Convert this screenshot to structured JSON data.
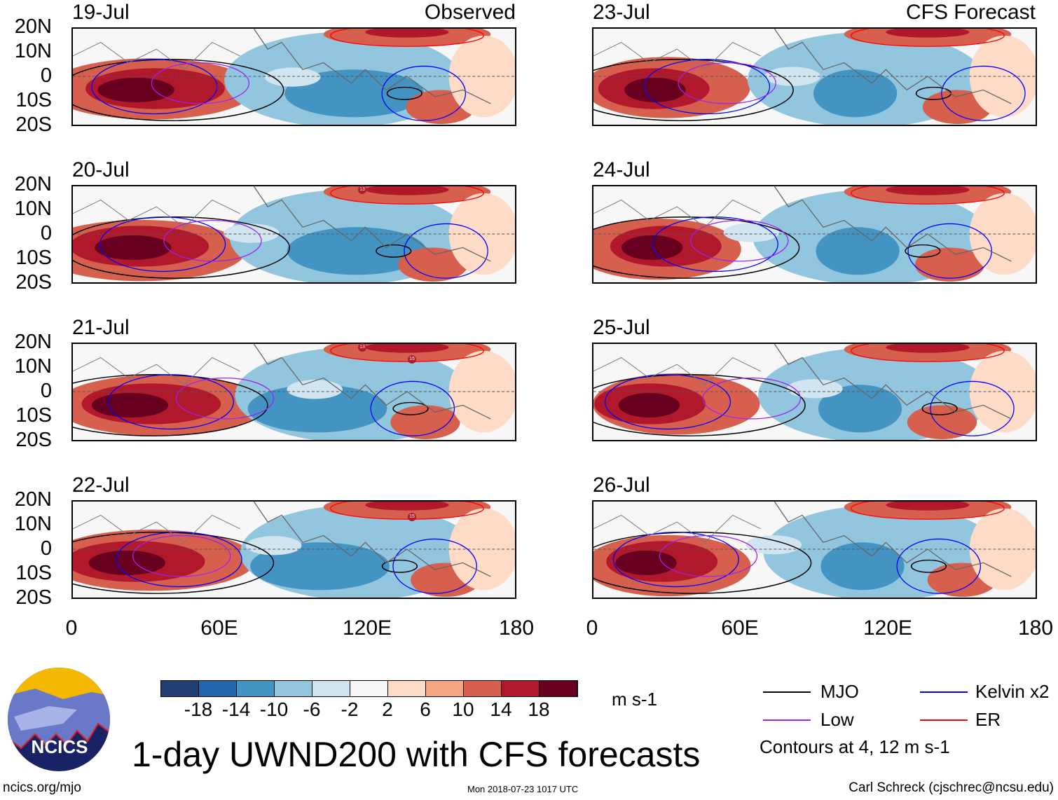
{
  "title": "1-day UWND200 with CFS forecasts",
  "left_panel_title": "Observed",
  "right_panel_title": "CFS Forecast",
  "left_dates": [
    "19-Jul",
    "20-Jul",
    "21-Jul",
    "22-Jul"
  ],
  "right_dates": [
    "23-Jul",
    "24-Jul",
    "25-Jul",
    "26-Jul"
  ],
  "lat_labels": [
    "20N",
    "10N",
    "0",
    "10S",
    "20S"
  ],
  "lon_labels": [
    "0",
    "60E",
    "120E",
    "180"
  ],
  "storm_markers": [
    "13",
    "15"
  ],
  "colorbar": {
    "labels": [
      "-18",
      "-14",
      "-10",
      "-6",
      "-2",
      "2",
      "6",
      "10",
      "14",
      "18"
    ],
    "units": "m s-1",
    "colors": [
      "#223f74",
      "#2166ac",
      "#4393c3",
      "#92c5de",
      "#d1e5f0",
      "#f7f7f7",
      "#fddbc7",
      "#f4a582",
      "#d6604d",
      "#b2182b",
      "#67001f"
    ]
  },
  "legend": {
    "items": [
      {
        "label": "MJO",
        "color": "#000000"
      },
      {
        "label": "Kelvin x2",
        "color": "#0000ff"
      },
      {
        "label": "Low",
        "color": "#a020f0"
      },
      {
        "label": "ER",
        "color": "#ff0000"
      }
    ],
    "note": "Contours at 4, 12 m s-1"
  },
  "logo_text": "NCICS",
  "footer": {
    "left": "ncics.org/mjo",
    "center": "Mon 2018-07-23 1017 UTC",
    "right": "Carl Schreck (cjschrec@ncsu.edu)"
  }
}
